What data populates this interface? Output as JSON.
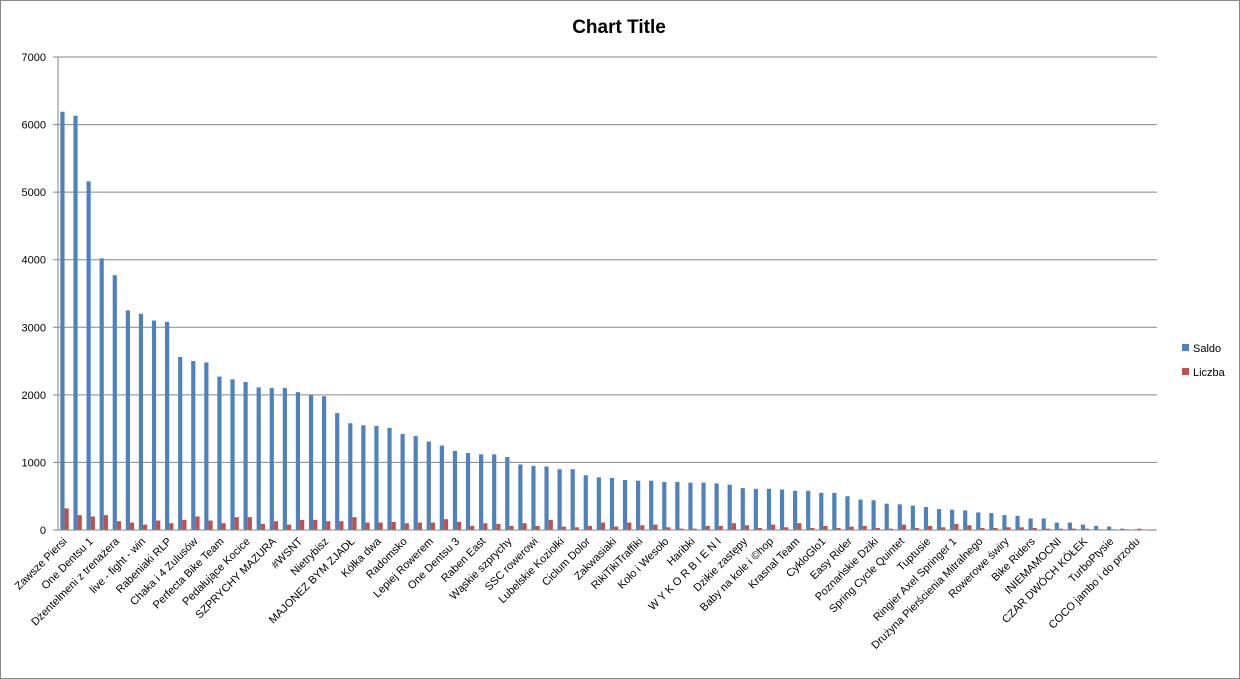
{
  "chart_data": {
    "type": "bar",
    "title": "Chart Title",
    "categories": [
      "Zawsze Piersi",
      null,
      "One Dentsu 1",
      null,
      "Dżentelmeni z trenażera",
      null,
      "live - fight - win",
      null,
      "Rabeniaki RLP",
      null,
      "Chaka i 4 Zulusów",
      null,
      "Perfecta Bike Team",
      null,
      "Pedałujące Kocice",
      null,
      "SZPRYCHY MAZURA",
      null,
      "#WSNT",
      null,
      "Nietrybisz",
      null,
      "MAJONEZ BYM ZJADŁ",
      null,
      "Kółka dwa",
      null,
      "Radomsko",
      null,
      "Lepiej Rowerem",
      null,
      "One Dentsu 3",
      null,
      "Raben East",
      null,
      "Wąskie szprychy",
      null,
      "SSC rowerowi",
      null,
      "Lubelskie Koziołki",
      null,
      "Ciclum Dolor",
      null,
      "Zakwasiaki",
      null,
      "RikiTikiTraffiki",
      null,
      "Koło i Wesoło",
      null,
      "Haribki",
      null,
      "W Y K O R B I E N I",
      null,
      "Dzikie zastępy",
      null,
      "Baby na kole i ©hop",
      null,
      "Krasnal Team",
      null,
      "CykloGlo1",
      null,
      "Easy Rider",
      null,
      "Poznańskie Dziki",
      null,
      "Spring Cycle Quintet",
      null,
      "Tuptusie",
      null,
      "Ringier Axel Springer 1",
      null,
      "Drużyna Pierścienia Mitralnego",
      null,
      "Rowerowe świry",
      null,
      "Bike Riders",
      null,
      "INIEMAMOCNI",
      null,
      "CZAR DWÓCH KÓŁEK",
      null,
      "TurboPtysie",
      null,
      "COCO jambo i do przodu",
      null
    ],
    "series": [
      {
        "name": "Saldo",
        "color": "#4f81bd",
        "values": [
          6190,
          6130,
          5160,
          4020,
          3770,
          3250,
          3200,
          3100,
          3080,
          2560,
          2500,
          2480,
          2270,
          2230,
          2190,
          2110,
          2100,
          2100,
          2040,
          2000,
          1980,
          1730,
          1580,
          1550,
          1540,
          1510,
          1420,
          1390,
          1310,
          1250,
          1170,
          1140,
          1120,
          1120,
          1080,
          970,
          950,
          940,
          900,
          900,
          810,
          780,
          770,
          740,
          730,
          730,
          710,
          710,
          700,
          700,
          690,
          670,
          620,
          610,
          610,
          600,
          580,
          580,
          550,
          550,
          500,
          450,
          440,
          390,
          380,
          360,
          340,
          310,
          300,
          290,
          260,
          250,
          220,
          210,
          170,
          170,
          110,
          110,
          80,
          60,
          50,
          20,
          10,
          5
        ]
      },
      {
        "name": "Liczba",
        "color": "#c0504d",
        "values": [
          320,
          220,
          200,
          220,
          130,
          110,
          80,
          140,
          100,
          150,
          200,
          140,
          100,
          190,
          190,
          90,
          130,
          80,
          150,
          150,
          130,
          130,
          190,
          110,
          110,
          120,
          100,
          110,
          110,
          160,
          120,
          60,
          100,
          90,
          60,
          100,
          60,
          150,
          50,
          40,
          60,
          110,
          50,
          110,
          70,
          80,
          40,
          20,
          20,
          60,
          60,
          100,
          70,
          30,
          80,
          40,
          100,
          30,
          60,
          30,
          50,
          60,
          30,
          20,
          80,
          30,
          60,
          40,
          90,
          70,
          30,
          30,
          40,
          40,
          30,
          20,
          20,
          20,
          20,
          10,
          10,
          10,
          20,
          10
        ]
      }
    ],
    "ylim": [
      0,
      7000
    ],
    "yticks": [
      0,
      1000,
      2000,
      3000,
      4000,
      5000,
      6000,
      7000
    ],
    "grid": true,
    "legend": "right"
  }
}
